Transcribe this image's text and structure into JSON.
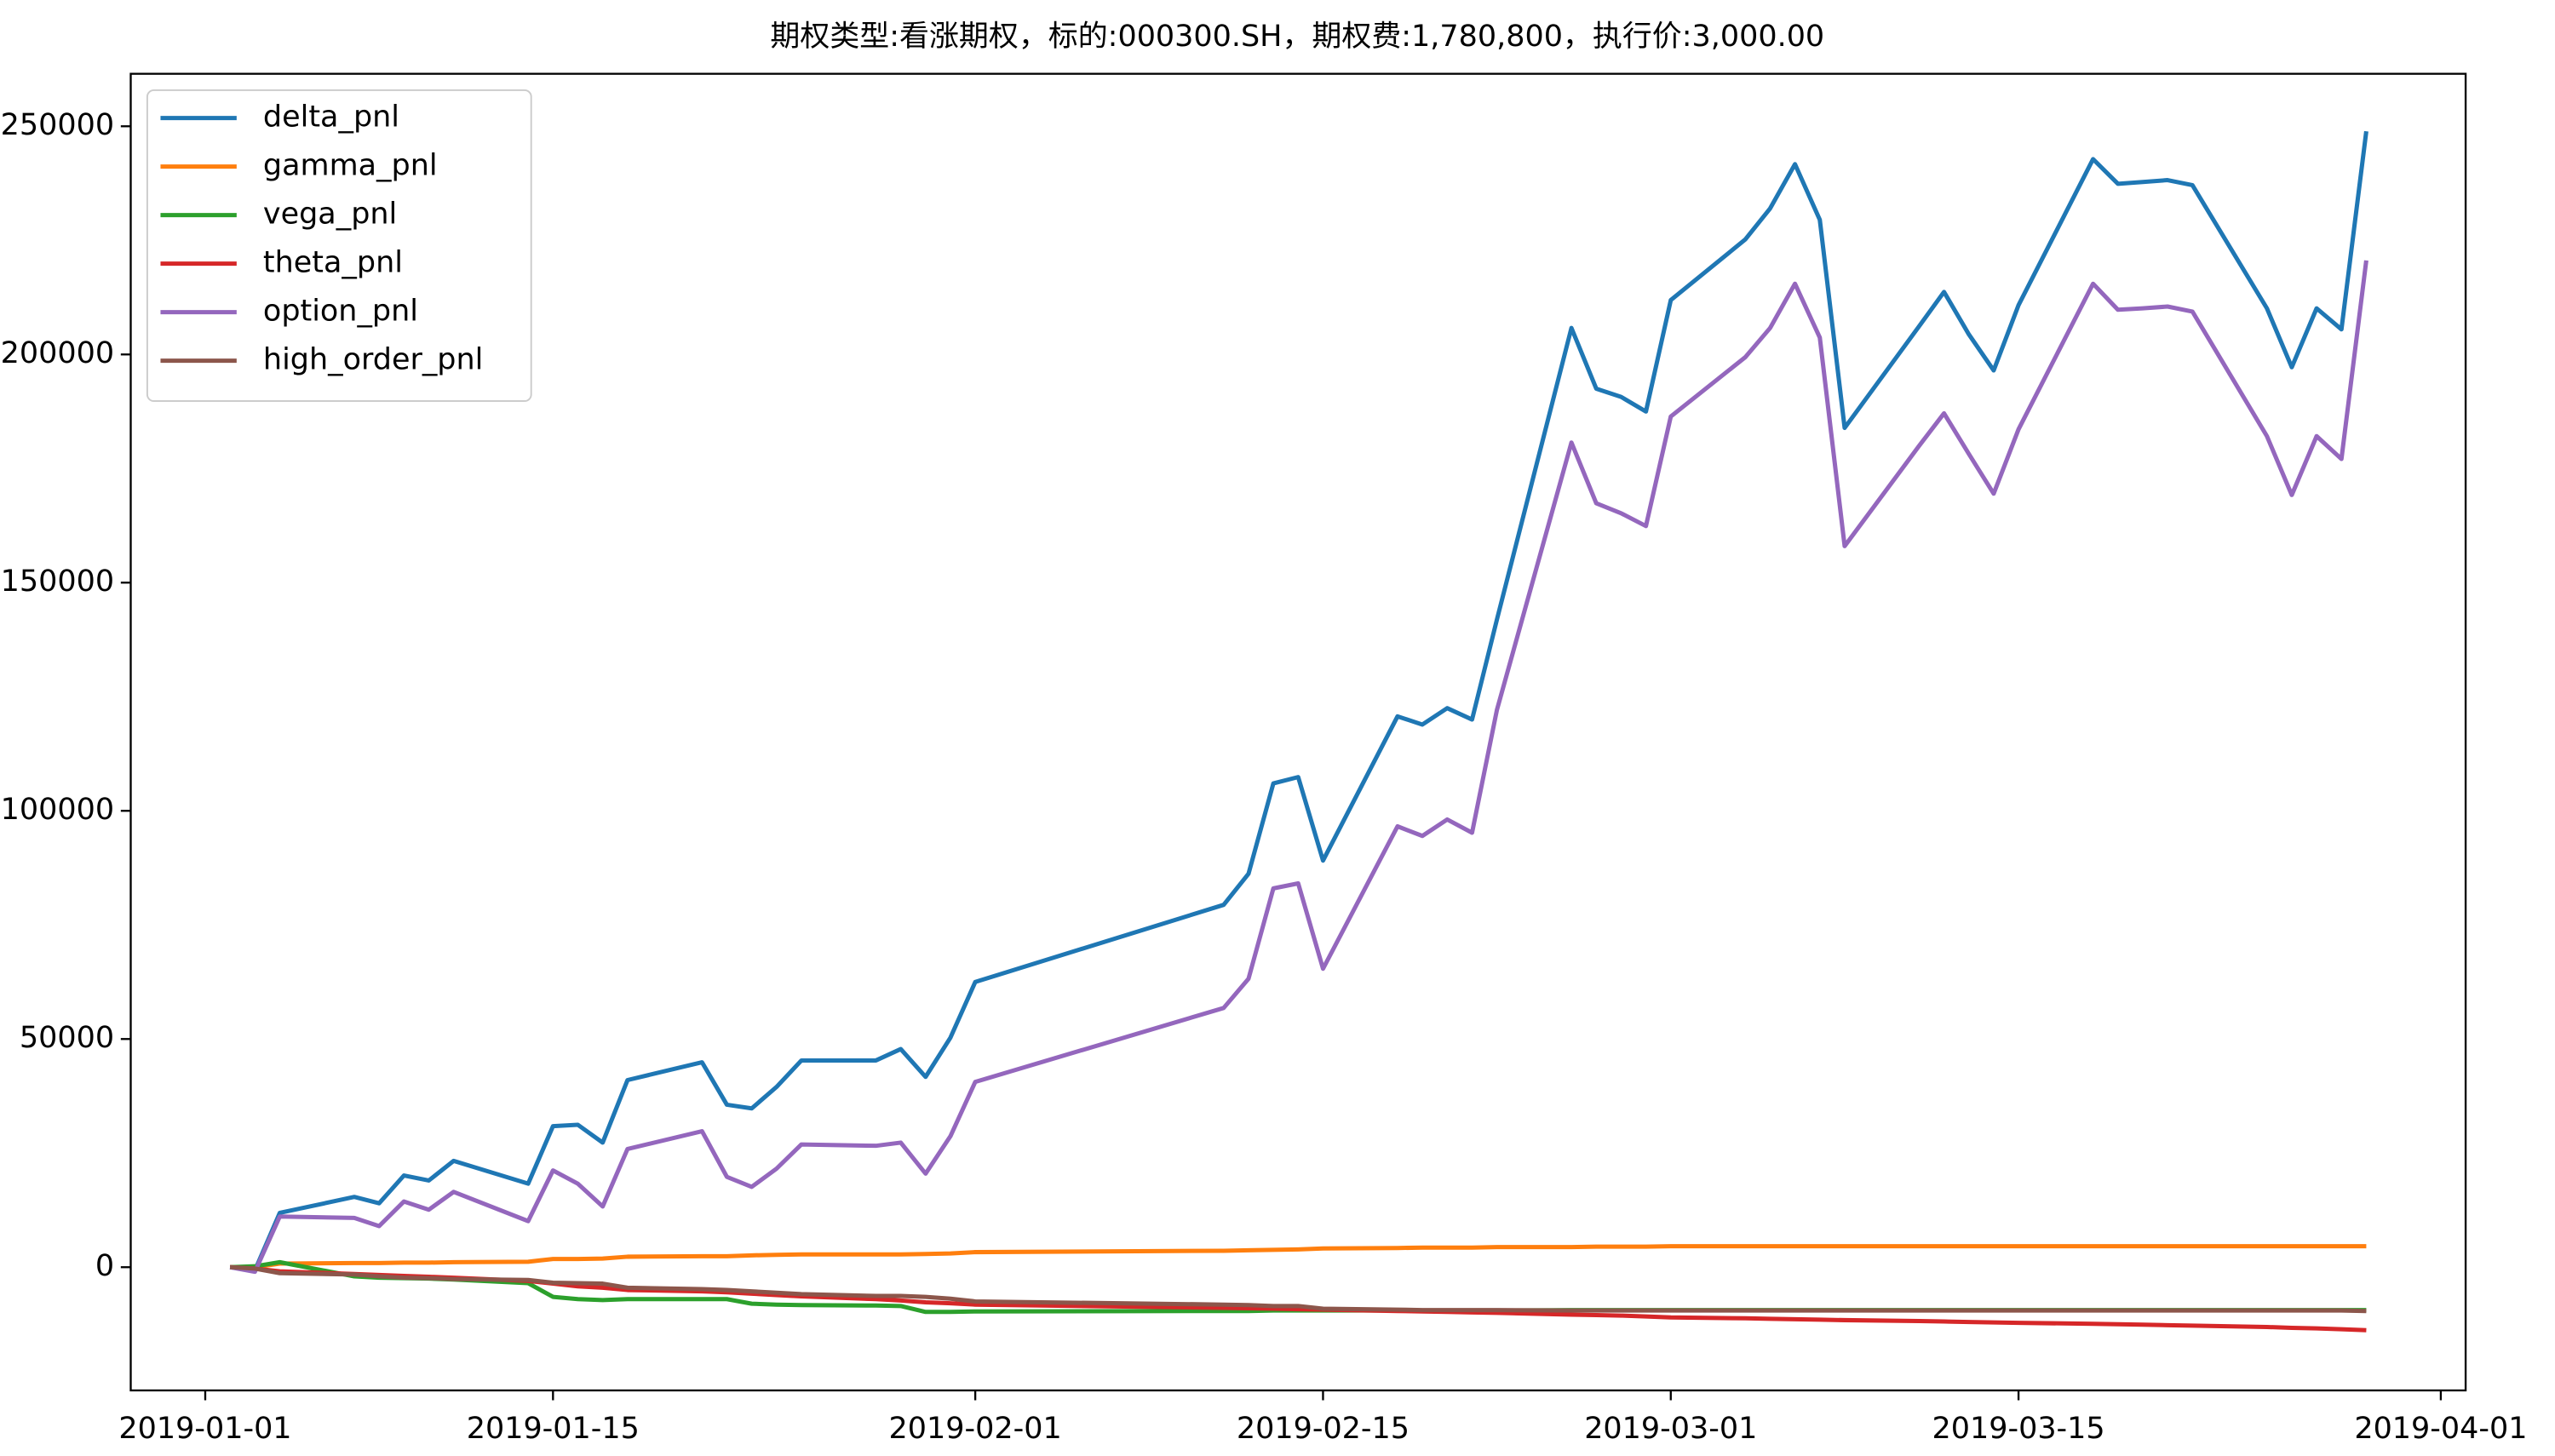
{
  "chart_data": {
    "type": "line",
    "title": "期权类型:看涨期权，标的:000300.SH，期权费:1,780,800，执行价:3,000.00",
    "x": [
      "2019-01-02",
      "2019-01-03",
      "2019-01-04",
      "2019-01-07",
      "2019-01-08",
      "2019-01-09",
      "2019-01-10",
      "2019-01-11",
      "2019-01-14",
      "2019-01-15",
      "2019-01-16",
      "2019-01-17",
      "2019-01-18",
      "2019-01-21",
      "2019-01-22",
      "2019-01-23",
      "2019-01-24",
      "2019-01-25",
      "2019-01-28",
      "2019-01-29",
      "2019-01-30",
      "2019-01-31",
      "2019-02-01",
      "2019-02-11",
      "2019-02-12",
      "2019-02-13",
      "2019-02-14",
      "2019-02-15",
      "2019-02-18",
      "2019-02-19",
      "2019-02-20",
      "2019-02-21",
      "2019-02-22",
      "2019-02-25",
      "2019-02-26",
      "2019-02-27",
      "2019-02-28",
      "2019-03-01",
      "2019-03-04",
      "2019-03-05",
      "2019-03-06",
      "2019-03-07",
      "2019-03-08",
      "2019-03-11",
      "2019-03-12",
      "2019-03-13",
      "2019-03-14",
      "2019-03-15",
      "2019-03-18",
      "2019-03-19",
      "2019-03-20",
      "2019-03-21",
      "2019-03-22",
      "2019-03-25",
      "2019-03-26",
      "2019-03-27",
      "2019-03-28",
      "2019-03-29"
    ],
    "series": [
      {
        "name": "delta_pnl",
        "color": "#1f77b4",
        "values": [
          0,
          -700,
          11900,
          15400,
          14000,
          20100,
          19000,
          23300,
          18300,
          30900,
          31200,
          27300,
          41000,
          44900,
          35600,
          34800,
          39500,
          45300,
          45300,
          47800,
          41700,
          50300,
          62500,
          79400,
          86200,
          106000,
          107400,
          89100,
          120700,
          118900,
          122500,
          120000,
          141900,
          205800,
          192500,
          190700,
          187500,
          211900,
          225200,
          232000,
          241700,
          229500,
          183900,
          206200,
          213700,
          204400,
          196500,
          210800,
          242800,
          237400,
          237800,
          238200,
          237100,
          210100,
          197200,
          210100,
          205500,
          248900
        ]
      },
      {
        "name": "gamma_pnl",
        "color": "#ff7f0e",
        "values": [
          0,
          0,
          800,
          900,
          900,
          1000,
          1000,
          1100,
          1200,
          1800,
          1800,
          1900,
          2300,
          2400,
          2400,
          2600,
          2700,
          2800,
          2800,
          2800,
          2900,
          3000,
          3300,
          3600,
          3700,
          3800,
          3900,
          4100,
          4200,
          4300,
          4300,
          4300,
          4400,
          4400,
          4500,
          4500,
          4500,
          4600,
          4600,
          4600,
          4600,
          4600,
          4600,
          4600,
          4600,
          4600,
          4600,
          4600,
          4600,
          4600,
          4600,
          4600,
          4600,
          4600,
          4600,
          4600,
          4600,
          4600
        ]
      },
      {
        "name": "vega_pnl",
        "color": "#2ca02c",
        "values": [
          0,
          200,
          1100,
          -2000,
          -2300,
          -2400,
          -2500,
          -2700,
          -3500,
          -6500,
          -7000,
          -7200,
          -7000,
          -7000,
          -7000,
          -8000,
          -8200,
          -8300,
          -8400,
          -8500,
          -9800,
          -9800,
          -9700,
          -9600,
          -9600,
          -9500,
          -9500,
          -9500,
          -9500,
          -9500,
          -9500,
          -9500,
          -9500,
          -9400,
          -9400,
          -9400,
          -9400,
          -9400,
          -9400,
          -9400,
          -9400,
          -9400,
          -9400,
          -9400,
          -9400,
          -9400,
          -9400,
          -9400,
          -9400,
          -9400,
          -9400,
          -9400,
          -9400,
          -9400,
          -9400,
          -9400,
          -9400,
          -9400
        ]
      },
      {
        "name": "theta_pnl",
        "color": "#d62728",
        "values": [
          0,
          -300,
          -900,
          -1500,
          -1700,
          -1900,
          -2100,
          -2300,
          -3000,
          -3600,
          -4200,
          -4500,
          -5000,
          -5300,
          -5500,
          -5800,
          -6100,
          -6400,
          -7000,
          -7300,
          -7700,
          -7900,
          -8200,
          -8900,
          -9000,
          -9100,
          -9200,
          -9300,
          -9600,
          -9700,
          -9800,
          -9900,
          -10000,
          -10400,
          -10500,
          -10600,
          -10800,
          -11000,
          -11200,
          -11300,
          -11400,
          -11500,
          -11600,
          -11800,
          -11900,
          -12000,
          -12100,
          -12200,
          -12400,
          -12500,
          -12600,
          -12700,
          -12800,
          -13100,
          -13300,
          -13400,
          -13600,
          -13800
        ]
      },
      {
        "name": "option_pnl",
        "color": "#9467bd",
        "values": [
          0,
          -1000,
          11100,
          10800,
          9000,
          14400,
          12600,
          16500,
          10100,
          21200,
          18300,
          13300,
          25900,
          29800,
          19800,
          17600,
          21600,
          26900,
          26600,
          27300,
          20500,
          28700,
          40600,
          56800,
          63200,
          83000,
          84100,
          65400,
          96600,
          94500,
          98100,
          95200,
          122100,
          180700,
          167400,
          165200,
          162400,
          186400,
          199400,
          205800,
          215500,
          203700,
          158000,
          180000,
          187100,
          178200,
          169500,
          183600,
          215500,
          209800,
          210100,
          210500,
          209400,
          182100,
          169200,
          182100,
          177100,
          220600
        ]
      },
      {
        "name": "high_order_pnl",
        "color": "#8c564b",
        "values": [
          0,
          -300,
          -1300,
          -1600,
          -2000,
          -2300,
          -2400,
          -2600,
          -2800,
          -3400,
          -3500,
          -3600,
          -4500,
          -4800,
          -5000,
          -5300,
          -5600,
          -5900,
          -6300,
          -6300,
          -6500,
          -6900,
          -7500,
          -8200,
          -8300,
          -8500,
          -8500,
          -9100,
          -9300,
          -9400,
          -9400,
          -9400,
          -9400,
          -9500,
          -9500,
          -9500,
          -9500,
          -9500,
          -9500,
          -9500,
          -9500,
          -9500,
          -9500,
          -9500,
          -9500,
          -9500,
          -9500,
          -9500,
          -9500,
          -9500,
          -9500,
          -9500,
          -9500,
          -9500,
          -9500,
          -9500,
          -9500,
          -9600
        ]
      }
    ],
    "xlim": [
      "2018-12-29",
      "2019-04-02"
    ],
    "xticks": [
      "2019-01-01",
      "2019-01-15",
      "2019-02-01",
      "2019-02-15",
      "2019-03-01",
      "2019-03-15",
      "2019-04-01"
    ],
    "ylim": [
      -27000,
      261500
    ],
    "yticks": [
      0,
      50000,
      100000,
      150000,
      200000,
      250000
    ],
    "legend": "upper left",
    "grid": false
  }
}
